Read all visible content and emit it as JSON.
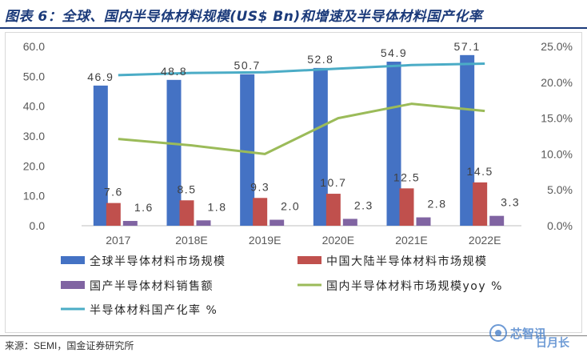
{
  "header": {
    "title": "图表 6：全球、国内半导体材料规模(US$ Bn)和增速及半导体材料国产化率"
  },
  "footer": {
    "source": "来源：SEMI，国金证券研究所"
  },
  "watermark": {
    "line1": "芯智讯",
    "line2": "日月长"
  },
  "colors": {
    "blue": "#4472c4",
    "red": "#c0504d",
    "purple": "#8064a2",
    "green": "#9bbb59",
    "teal": "#4bacc6",
    "axis_text": "#595959"
  },
  "chart_data": {
    "type": "bar",
    "title": "全球、国内半导体材料规模(US$ Bn)和增速及半导体材料国产化率",
    "categories": [
      "2017",
      "2018E",
      "2019E",
      "2020E",
      "2021E",
      "2022E"
    ],
    "left_axis": {
      "ylim": [
        0,
        60
      ],
      "ticks": [
        "0.0",
        "10.0",
        "20.0",
        "30.0",
        "40.0",
        "50.0",
        "60.0"
      ],
      "tick_values": [
        0,
        10,
        20,
        30,
        40,
        50,
        60
      ]
    },
    "right_axis": {
      "ylim": [
        0,
        25
      ],
      "ticks": [
        "0.0%",
        "5.0%",
        "10.0%",
        "15.0%",
        "20.0%",
        "25.0%"
      ],
      "tick_values": [
        0,
        5,
        10,
        15,
        20,
        25
      ]
    },
    "series": [
      {
        "name": "全球半导体材料市场规模",
        "kind": "bar",
        "axis": "left",
        "color": "#4472c4",
        "values": [
          46.9,
          48.8,
          50.7,
          52.8,
          54.9,
          57.1
        ],
        "labels": [
          "46.9",
          "48.8",
          "50.7",
          "52.8",
          "54.9",
          "57.1"
        ]
      },
      {
        "name": "中国大陆半导体材料市场规模",
        "kind": "bar",
        "axis": "left",
        "color": "#c0504d",
        "values": [
          7.6,
          8.5,
          9.3,
          10.7,
          12.5,
          14.5
        ],
        "labels": [
          "7.6",
          "8.5",
          "9.3",
          "10.7",
          "12.5",
          "14.5"
        ]
      },
      {
        "name": "国产半导体材料销售额",
        "kind": "bar",
        "axis": "left",
        "color": "#8064a2",
        "values": [
          1.6,
          1.8,
          2.0,
          2.3,
          2.8,
          3.3
        ],
        "labels": [
          "1.6",
          "1.8",
          "2.0",
          "2.3",
          "2.8",
          "3.3"
        ]
      },
      {
        "name": "国内半导体材料市场规模yoy %",
        "kind": "line",
        "axis": "right",
        "color": "#9bbb59",
        "values": [
          12.1,
          11.2,
          10.0,
          15.0,
          17.0,
          16.0
        ]
      },
      {
        "name": "半导体材料国产化率 %",
        "kind": "line",
        "axis": "right",
        "color": "#4bacc6",
        "values": [
          21.0,
          21.3,
          21.4,
          21.9,
          22.4,
          22.6
        ]
      }
    ],
    "legend": {
      "position": "bottom",
      "entries": [
        "全球半导体材料市场规模",
        "中国大陆半导体材料市场规模",
        "国产半导体材料销售额",
        "国内半导体材料市场规模yoy %",
        "半导体材料国产化率 %"
      ]
    }
  }
}
